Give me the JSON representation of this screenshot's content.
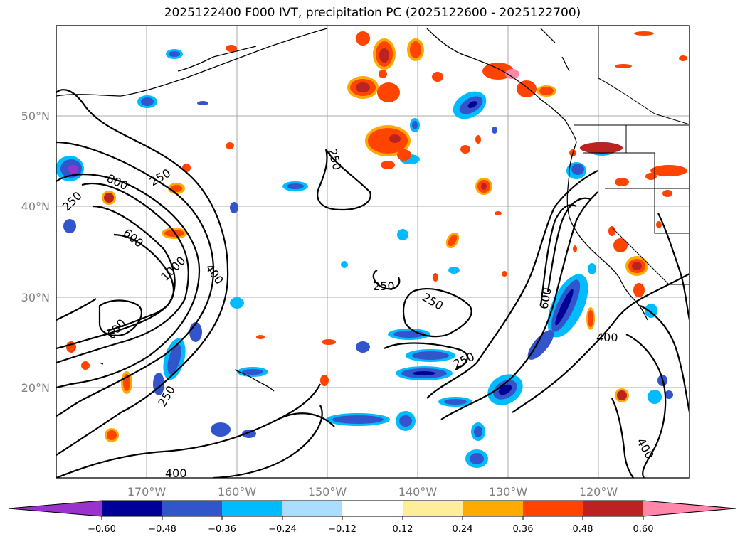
{
  "title": "2025122400 F000 IVT, precipitation PC (2025122600 - 2025122700)",
  "axes": {
    "lon_labels": [
      "170°W",
      "160°W",
      "150°W",
      "140°W",
      "130°W",
      "120°W"
    ],
    "lat_labels": [
      "50°N",
      "40°N",
      "30°N",
      "20°N"
    ],
    "lon_range": [
      -180,
      -110
    ],
    "lat_range": [
      10,
      60
    ],
    "grid": true
  },
  "colorbar": {
    "ticks": [
      "−0.60",
      "−0.48",
      "−0.36",
      "−0.24",
      "−0.12",
      "0.12",
      "0.24",
      "0.36",
      "0.48",
      "0.60"
    ],
    "colors": [
      "#9933cc",
      "#000099",
      "#3355cc",
      "#00bbff",
      "#aaddff",
      "#ffffff",
      "#ffee99",
      "#ffaa00",
      "#ff4400",
      "#bb2222",
      "#ff88aa"
    ],
    "extend": "both"
  },
  "contour_labels": [
    "250",
    "250",
    "250",
    "250",
    "250",
    "250",
    "250",
    "800",
    "600",
    "1000",
    "400",
    "600",
    "600",
    "400",
    "400",
    "400"
  ],
  "colors": {
    "neg_strong": "#000099",
    "neg_mid": "#3355cc",
    "neg_light": "#00bbff",
    "pos_light": "#ffee99",
    "pos_mid": "#ffaa00",
    "pos_strong": "#ff4400",
    "pos_dark": "#bb2222",
    "pos_pink": "#ff88aa"
  }
}
